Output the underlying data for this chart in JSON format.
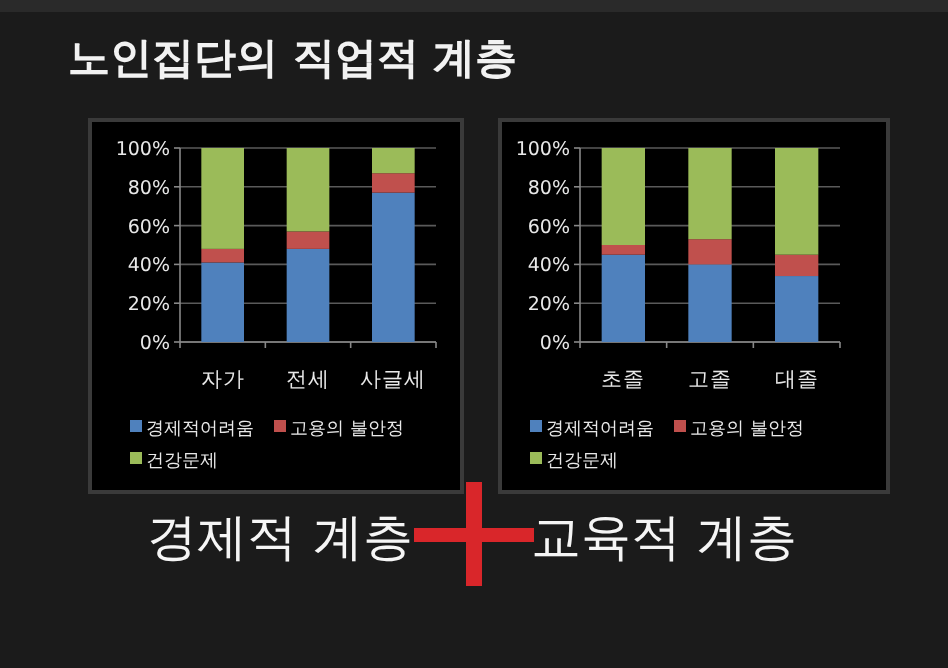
{
  "chart_data": [
    {
      "type": "bar",
      "stacked": true,
      "title": "노인집단의 직업적 계층",
      "categories": [
        "자가",
        "전세",
        "사글세"
      ],
      "series": [
        {
          "name": "경제적어려움",
          "color": "#4f81bd",
          "values": [
            41,
            48,
            77
          ]
        },
        {
          "name": "고용의 불안정",
          "color": "#c0504d",
          "values": [
            7,
            9,
            10
          ]
        },
        {
          "name": "건강문제",
          "color": "#9bbb59",
          "values": [
            52,
            43,
            13
          ]
        }
      ],
      "ylim": [
        0,
        100
      ],
      "yticks": [
        {
          "value": 0,
          "label": "0%"
        },
        {
          "value": 20,
          "label": "20%"
        },
        {
          "value": 40,
          "label": "40%"
        },
        {
          "value": 60,
          "label": "60%"
        },
        {
          "value": 80,
          "label": "80%"
        },
        {
          "value": 100,
          "label": "100%"
        }
      ],
      "grid": "y",
      "legend": "bottom",
      "annotations": [
        "경제적 계층"
      ]
    },
    {
      "type": "bar",
      "stacked": true,
      "categories": [
        "초졸",
        "고졸",
        "대졸"
      ],
      "series": [
        {
          "name": "경제적어려움",
          "color": "#4f81bd",
          "values": [
            45,
            40,
            34
          ]
        },
        {
          "name": "고용의 불안정",
          "color": "#c0504d",
          "values": [
            5,
            13,
            11
          ]
        },
        {
          "name": "건강문제",
          "color": "#9bbb59",
          "values": [
            50,
            47,
            55
          ]
        }
      ],
      "ylim": [
        0,
        100
      ],
      "yticks": [
        {
          "value": 0,
          "label": "0%"
        },
        {
          "value": 20,
          "label": "20%"
        },
        {
          "value": 40,
          "label": "40%"
        },
        {
          "value": 60,
          "label": "60%"
        },
        {
          "value": 80,
          "label": "80%"
        },
        {
          "value": 100,
          "label": "100%"
        }
      ],
      "grid": "y",
      "legend": "bottom",
      "annotations": [
        "교육적 계층"
      ]
    }
  ]
}
